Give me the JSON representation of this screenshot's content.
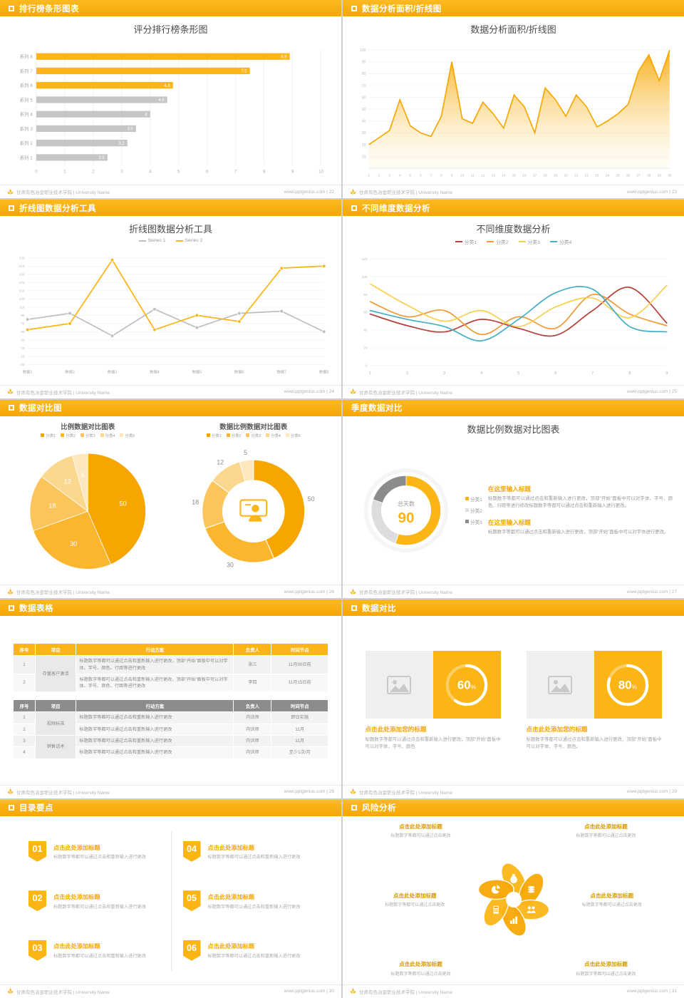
{
  "colors": {
    "accent": "#F7A600",
    "accent_light": "#FBB514",
    "bar_gray": "#C6C6C6"
  },
  "footer": {
    "org": "甘肃有色冶金职业技术学院 | University Name",
    "site": "www.pptgenius.com"
  },
  "slide1": {
    "header": "排行榜条形图表",
    "page": "22",
    "title": "评分排行榜条形图",
    "chart_data": {
      "type": "hbar",
      "title": "评分排行榜条形图",
      "categories": [
        "系列 8",
        "系列 7",
        "系列 6",
        "系列 5",
        "系列 4",
        "系列 3",
        "系列 2",
        "系列 1"
      ],
      "values": [
        8.9,
        7.5,
        4.8,
        4.6,
        4,
        3.5,
        3.2,
        2.5
      ],
      "labels": [
        "8.9",
        "7.5",
        "4.8",
        "4.6",
        "4",
        "3.5",
        "3.2",
        "2.5"
      ],
      "colors": [
        "#FBB514",
        "#FBB514",
        "#FBB514",
        "#C6C6C6",
        "#C6C6C6",
        "#C6C6C6",
        "#C6C6C6",
        "#C6C6C6"
      ],
      "xlim": [
        0,
        10
      ],
      "xticks": [
        0,
        1,
        2,
        3,
        4,
        5,
        6,
        7,
        8,
        9,
        10
      ]
    }
  },
  "slide2": {
    "header": "数据分析面积/折线图",
    "page": "23",
    "title": "数据分析面积/折线图",
    "chart_data": {
      "type": "area",
      "color": "#F7A600",
      "x": [
        1,
        2,
        3,
        4,
        5,
        6,
        7,
        8,
        9,
        10,
        11,
        12,
        13,
        14,
        15,
        16,
        17,
        18,
        19,
        20,
        21,
        22,
        23,
        24,
        25,
        26,
        27,
        28,
        29,
        30
      ],
      "values": [
        20,
        26,
        32,
        58,
        36,
        30,
        27,
        44,
        90,
        42,
        38,
        56,
        46,
        34,
        62,
        52,
        30,
        68,
        58,
        44,
        62,
        52,
        35,
        40,
        46,
        54,
        82,
        96,
        74,
        100
      ],
      "ylim": [
        0,
        100
      ],
      "yticks": [
        10,
        20,
        30,
        40,
        50,
        60,
        70,
        80,
        90,
        100
      ]
    }
  },
  "slide3": {
    "header": "折线图数据分析工具",
    "page": "24",
    "title": "折线图数据分析工具",
    "chart_data": {
      "type": "lines",
      "markers": true,
      "categories": [
        "数据1",
        "数据2",
        "数据3",
        "数据4",
        "数据5",
        "数据6",
        "数据7",
        "数据8"
      ],
      "series": [
        {
          "name": "Series 1",
          "color": "#BFBFBF",
          "values": [
            80,
            95,
            40,
            105,
            60,
            95,
            100,
            50
          ]
        },
        {
          "name": "Series 2",
          "color": "#FBB514",
          "values": [
            55,
            70,
            225,
            55,
            90,
            75,
            205,
            210
          ]
        }
      ],
      "ylim": [
        -30,
        230
      ],
      "ystep": 20
    }
  },
  "slide4": {
    "header": "不同维度数据分析",
    "page": "25",
    "title": "不同维度数据分析",
    "chart_data": {
      "type": "lines",
      "smooth": true,
      "categories": [
        "1",
        "2",
        "3",
        "4",
        "5",
        "6",
        "7",
        "8",
        "9"
      ],
      "series": [
        {
          "name": "分类1",
          "color": "#B5413C",
          "values": [
            58,
            45,
            38,
            52,
            42,
            34,
            62,
            88,
            48
          ]
        },
        {
          "name": "分类2",
          "color": "#F29B38",
          "values": [
            72,
            55,
            62,
            35,
            55,
            42,
            80,
            58,
            45
          ]
        },
        {
          "name": "分类3",
          "color": "#FAD04F",
          "values": [
            92,
            68,
            50,
            62,
            44,
            66,
            76,
            54,
            90
          ]
        },
        {
          "name": "分类4",
          "color": "#45B0C4",
          "values": [
            62,
            52,
            44,
            28,
            52,
            82,
            86,
            44,
            38
          ]
        }
      ],
      "ylim": [
        0,
        120
      ],
      "ystep": 20
    }
  },
  "slide5": {
    "header": "数据对比图",
    "page": "26",
    "left": {
      "title": "比例数据对比图表",
      "chart_data": {
        "type": "pie",
        "labels": [
          "分类1",
          "分类2",
          "分类3",
          "分类4",
          "分类5"
        ],
        "values": [
          50,
          30,
          18,
          12,
          5
        ],
        "colors": [
          "#F7A600",
          "#F9B62E",
          "#FBC55C",
          "#FCD88F",
          "#FDE7BC"
        ]
      }
    },
    "right": {
      "title": "数据比例数据对比图表",
      "chart_data": {
        "type": "donut",
        "labels": [
          "分类1",
          "分类2",
          "分类3",
          "分类4",
          "分类5"
        ],
        "values": [
          50,
          30,
          18,
          12,
          5
        ],
        "colors": [
          "#F7A600",
          "#F9B62E",
          "#FBC55C",
          "#FCD88F",
          "#FDE7BC"
        ],
        "center_icon": "presenter-icon"
      }
    }
  },
  "slide6": {
    "header": "季度数据对比",
    "page": "27",
    "title": "数据比例数据对比图表",
    "chart_data": {
      "type": "donut",
      "labels": [
        "分类1",
        "分类2",
        "分类3"
      ],
      "values": [
        55,
        25,
        20
      ],
      "colors": [
        "#FBB514",
        "#DDDDDD",
        "#8C8C8C"
      ],
      "center_label": "总天数",
      "center_value": "90",
      "show_values": false
    },
    "blocks": [
      {
        "heading": "在这里输入标题",
        "body": "标题数字等都可以通过点击和重新输入进行更改，顶部“开始”面板中可以对字体、字号、颜色、行距等进行修改标题数字等都可以通过点击和重新输入进行更改。"
      },
      {
        "heading": "在这里输入标题",
        "body": "标题数字等都可以通过点击和重新输入进行更改，顶部“开始”面板中可以对字体进行更改。"
      }
    ]
  },
  "slide7": {
    "header": "数据表格",
    "page": "28",
    "table1": {
      "header_bg": "#FBB514",
      "headers": [
        "序号",
        "项目",
        "行动方案",
        "负责人",
        "时间节点"
      ],
      "rows": [
        [
          {
            "t": "1"
          },
          {
            "t": "存量客户激活",
            "rs": 2,
            "cls": "proj"
          },
          {
            "t": "标题数字等都可以通过点击和重新输入进行更改，顶部“开始”面板中可以对字体、字号、颜色、行距等进行更改",
            "cls": "left"
          },
          {
            "t": "张三"
          },
          {
            "t": "11月30日前"
          }
        ],
        [
          {
            "t": "2"
          },
          {
            "t": "标题数字等都可以通过点击和重新输入进行更改，顶部“开始”面板中可以对字体、字号、颜色、行距等进行更改",
            "cls": "left"
          },
          {
            "t": "李四"
          },
          {
            "t": "11月15日前"
          }
        ]
      ]
    },
    "table2": {
      "header_bg": "#8C8C8C",
      "headers": [
        "序号",
        "项目",
        "行动方案",
        "负责人",
        "时间节点"
      ],
      "rows": [
        [
          {
            "t": "1"
          },
          {
            "t": "视频标准",
            "rs": 2,
            "cls": "proj"
          },
          {
            "t": "标题数字等都可以通过点击和重新输入进行更改",
            "cls": "left"
          },
          {
            "t": "内训师"
          },
          {
            "t": "即日实施"
          }
        ],
        [
          {
            "t": "2"
          },
          {
            "t": "标题数字等都可以通过点击和重新输入进行更改",
            "cls": "left"
          },
          {
            "t": "内训师"
          },
          {
            "t": "11月"
          }
        ],
        [
          {
            "t": "3"
          },
          {
            "t": "销售话术",
            "rs": 2,
            "cls": "proj"
          },
          {
            "t": "标题数字等都可以通过点击和重新输入进行更改",
            "cls": "left"
          },
          {
            "t": "内训师"
          },
          {
            "t": "11月"
          }
        ],
        [
          {
            "t": "4"
          },
          {
            "t": "标题数字等都可以通过点击和重新输入进行更改",
            "cls": "left"
          },
          {
            "t": "内训师"
          },
          {
            "t": "至少1次/月"
          }
        ]
      ]
    }
  },
  "slide8": {
    "header": "数据对比",
    "page": "29",
    "cards": [
      {
        "ring": {
          "type": "ring",
          "percent": 60
        },
        "title": "点击此处添加您的标题",
        "body": "标题数字等都可以通过点击和重新输入进行更改，顶部“开始”面板中可以对字体、字号、颜色"
      },
      {
        "ring": {
          "type": "ring",
          "percent": 80
        },
        "title": "点击此处添加您的标题",
        "body": "标题数字等都可以通过点击和重新输入进行更改，顶部“开始”面板中可以对字体、字号、颜色。"
      }
    ]
  },
  "slide9": {
    "header": "目录要点",
    "page": "30",
    "items": [
      {
        "num": "01",
        "title": "点击此处添加标题",
        "desc": "标题数字等都可以通过点击和重新输入进行更改"
      },
      {
        "num": "02",
        "title": "点击此处添加标题",
        "desc": "标题数字等都可以通过点击和重新输入进行更改"
      },
      {
        "num": "03",
        "title": "点击此处添加标题",
        "desc": "标题数字等都可以通过点击和重新输入进行更改"
      },
      {
        "num": "04",
        "title": "点击此处添加标题",
        "desc": "标题数字等都可以通过点击和重新输入进行更改"
      },
      {
        "num": "05",
        "title": "点击此处添加标题",
        "desc": "标题数字等都可以通过点击和重新输入进行更改"
      },
      {
        "num": "06",
        "title": "点击此处添加标题",
        "desc": "标题数字等都可以通过点击和重新输入进行更改"
      }
    ]
  },
  "slide10": {
    "header": "风险分析",
    "page": "31",
    "icons": [
      "money-bag-icon",
      "coins-icon",
      "people-icon",
      "chart-icon",
      "calculator-icon",
      "pie-icon"
    ],
    "labels": [
      {
        "title": "点击此处添加标题",
        "desc": "标题数字等都可以通过点击更改"
      },
      {
        "title": "点击此处添加标题",
        "desc": "标题数字等都可以通过点击更改"
      },
      {
        "title": "点击此处添加标题",
        "desc": "标题数字等都可以通过点击更改"
      },
      {
        "title": "点击此处添加标题",
        "desc": "标题数字等都可以通过点击更改"
      },
      {
        "title": "点击此处添加标题",
        "desc": "标题数字等都可以通过点击更改"
      },
      {
        "title": "点击此处添加标题",
        "desc": "标题数字等都可以通过点击更改"
      }
    ]
  }
}
